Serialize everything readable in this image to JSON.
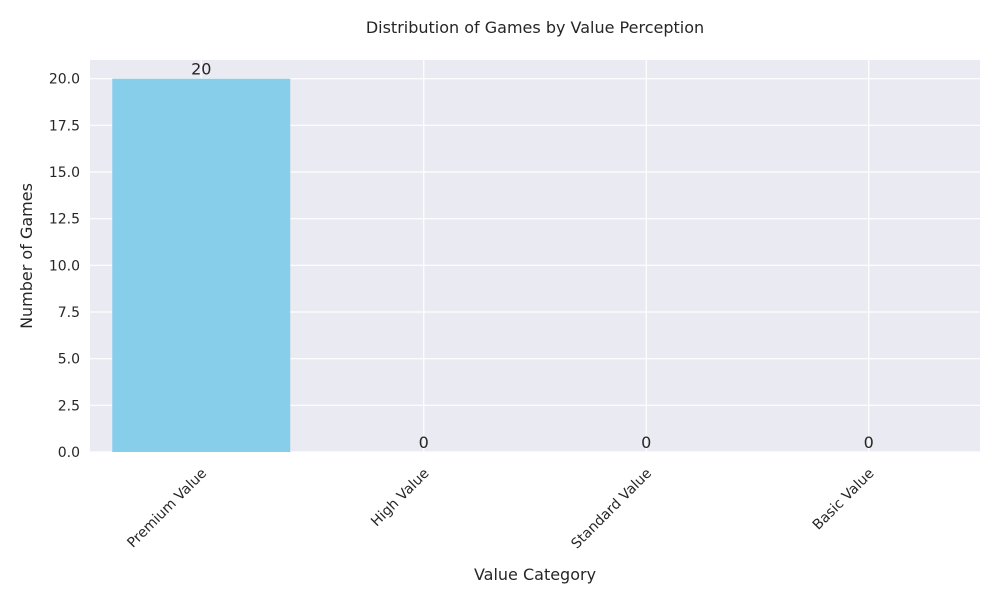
{
  "chart_data": {
    "type": "bar",
    "title": "Distribution of Games by Value Perception",
    "xlabel": "Value Category",
    "ylabel": "Number of Games",
    "categories": [
      "Premium Value",
      "High Value",
      "Standard Value",
      "Basic Value"
    ],
    "values": [
      20,
      0,
      0,
      0
    ],
    "data_labels": [
      "20",
      "0",
      "0",
      "0"
    ],
    "yticks": [
      0.0,
      2.5,
      5.0,
      7.5,
      10.0,
      12.5,
      15.0,
      17.5,
      20.0
    ],
    "ytick_labels": [
      "0.0",
      "2.5",
      "5.0",
      "7.5",
      "10.0",
      "12.5",
      "15.0",
      "17.5",
      "20.0"
    ],
    "ylim": [
      0,
      21
    ],
    "grid": true,
    "legend": "none",
    "colors": {
      "bar": "#87ceeb",
      "plot_background": "#eaeaf2",
      "grid": "#ffffff",
      "text": "#262626"
    }
  }
}
